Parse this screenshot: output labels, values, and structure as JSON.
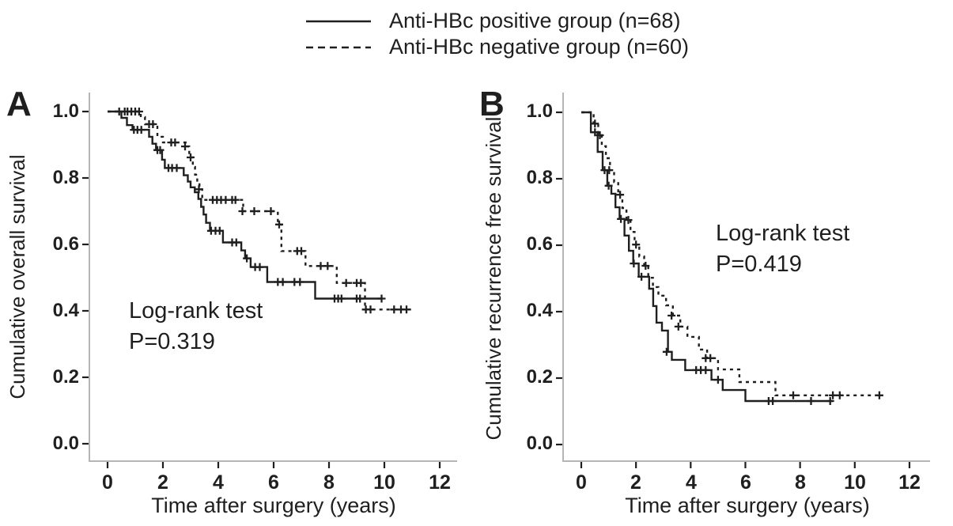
{
  "colors": {
    "ink": "#1f1f1f",
    "axis": "#b5b5b5"
  },
  "legend": {
    "items": [
      {
        "label": "Anti-HBc positive group (n=68)",
        "style": "solid"
      },
      {
        "label": "Anti-HBc negative group (n=60)",
        "style": "dashed"
      }
    ]
  },
  "chart_data": [
    {
      "type": "line",
      "subtype": "kaplan-meier-step",
      "panel": "A",
      "letter": "A",
      "ylabel": "Cumulative overall survival",
      "xlabel": "Time after surgery (years)",
      "annotation": [
        "Log-rank test",
        "P=0.319"
      ],
      "xlim": [
        0,
        12
      ],
      "ylim": [
        0.0,
        1.0
      ],
      "xticks": [
        0,
        2,
        4,
        6,
        8,
        10,
        12
      ],
      "xtick_labels": [
        "0",
        "2",
        "4",
        "6",
        "8",
        "10",
        "12"
      ],
      "ytick_values": [
        1.0,
        0.8,
        0.6,
        0.4,
        0.2,
        0.0
      ],
      "ytick_labels": [
        "1.0",
        "0.8",
        "0.6",
        "0.4",
        "0.2",
        "0.0"
      ],
      "grid": false,
      "series": [
        {
          "name": "Anti-HBc positive group (n=68)",
          "style": "solid",
          "end_t": 9.9,
          "steps": [
            [
              0,
              1.0
            ],
            [
              0.5,
              0.981
            ],
            [
              0.7,
              0.959
            ],
            [
              0.9,
              0.945
            ],
            [
              1.5,
              0.924
            ],
            [
              1.62,
              0.903
            ],
            [
              1.75,
              0.884
            ],
            [
              1.97,
              0.855
            ],
            [
              2.07,
              0.83
            ],
            [
              2.75,
              0.808
            ],
            [
              2.9,
              0.789
            ],
            [
              3.0,
              0.772
            ],
            [
              3.15,
              0.757
            ],
            [
              3.28,
              0.737
            ],
            [
              3.38,
              0.713
            ],
            [
              3.47,
              0.69
            ],
            [
              3.56,
              0.665
            ],
            [
              3.7,
              0.641
            ],
            [
              4.17,
              0.606
            ],
            [
              4.83,
              0.582
            ],
            [
              4.97,
              0.558
            ],
            [
              5.17,
              0.532
            ],
            [
              5.77,
              0.487
            ],
            [
              7.5,
              0.437
            ]
          ],
          "censors": [
            [
              0.42,
              1.0
            ],
            [
              0.95,
              0.945
            ],
            [
              1.08,
              0.945
            ],
            [
              1.22,
              0.945
            ],
            [
              1.8,
              0.884
            ],
            [
              1.9,
              0.884
            ],
            [
              2.2,
              0.83
            ],
            [
              2.33,
              0.83
            ],
            [
              2.5,
              0.83
            ],
            [
              3.74,
              0.641
            ],
            [
              3.9,
              0.641
            ],
            [
              4.05,
              0.641
            ],
            [
              4.5,
              0.606
            ],
            [
              4.65,
              0.606
            ],
            [
              5.03,
              0.558
            ],
            [
              5.33,
              0.532
            ],
            [
              5.5,
              0.532
            ],
            [
              6.15,
              0.487
            ],
            [
              6.33,
              0.487
            ],
            [
              6.75,
              0.487
            ],
            [
              6.95,
              0.487
            ],
            [
              8.2,
              0.437
            ],
            [
              8.33,
              0.437
            ],
            [
              8.45,
              0.437
            ],
            [
              9.0,
              0.437
            ],
            [
              9.12,
              0.437
            ],
            [
              9.9,
              0.437
            ]
          ]
        },
        {
          "name": "Anti-HBc negative group (n=60)",
          "style": "dashed",
          "end_t": 11.0,
          "steps": [
            [
              0,
              1.0
            ],
            [
              1.2,
              0.983
            ],
            [
              1.35,
              0.962
            ],
            [
              1.8,
              0.924
            ],
            [
              2.0,
              0.907
            ],
            [
              2.82,
              0.895
            ],
            [
              2.95,
              0.862
            ],
            [
              3.08,
              0.833
            ],
            [
              3.16,
              0.81
            ],
            [
              3.24,
              0.789
            ],
            [
              3.32,
              0.766
            ],
            [
              3.42,
              0.734
            ],
            [
              4.9,
              0.7
            ],
            [
              6.15,
              0.66
            ],
            [
              6.28,
              0.58
            ],
            [
              7.15,
              0.535
            ],
            [
              8.28,
              0.484
            ],
            [
              9.3,
              0.404
            ]
          ],
          "censors": [
            [
              0.62,
              1.0
            ],
            [
              0.72,
              1.0
            ],
            [
              0.86,
              1.0
            ],
            [
              1.0,
              1.0
            ],
            [
              1.14,
              1.0
            ],
            [
              1.5,
              0.962
            ],
            [
              1.64,
              0.962
            ],
            [
              2.3,
              0.907
            ],
            [
              2.44,
              0.907
            ],
            [
              2.8,
              0.895
            ],
            [
              3.0,
              0.862
            ],
            [
              3.3,
              0.766
            ],
            [
              3.8,
              0.734
            ],
            [
              3.95,
              0.734
            ],
            [
              4.1,
              0.734
            ],
            [
              4.27,
              0.734
            ],
            [
              4.5,
              0.734
            ],
            [
              4.62,
              0.734
            ],
            [
              4.87,
              0.7
            ],
            [
              5.3,
              0.7
            ],
            [
              5.9,
              0.7
            ],
            [
              6.2,
              0.66
            ],
            [
              6.85,
              0.58
            ],
            [
              7.0,
              0.58
            ],
            [
              7.7,
              0.535
            ],
            [
              7.95,
              0.535
            ],
            [
              8.62,
              0.484
            ],
            [
              9.0,
              0.484
            ],
            [
              9.15,
              0.484
            ],
            [
              9.33,
              0.404
            ],
            [
              9.5,
              0.404
            ],
            [
              10.35,
              0.404
            ],
            [
              10.6,
              0.404
            ],
            [
              10.8,
              0.404
            ]
          ]
        }
      ]
    },
    {
      "type": "line",
      "subtype": "kaplan-meier-step",
      "panel": "B",
      "letter": "B",
      "ylabel": "Cumulative recurrence free survival",
      "xlabel": "Time after surgery (years)",
      "annotation": [
        "Log-rank test",
        "P=0.419"
      ],
      "xlim": [
        0,
        12
      ],
      "ylim": [
        0.0,
        1.0
      ],
      "xticks": [
        0,
        2,
        4,
        6,
        8,
        10,
        12
      ],
      "xtick_labels": [
        "0",
        "2",
        "4",
        "6",
        "8",
        "10",
        "12"
      ],
      "ytick_values": [
        1.0,
        0.8,
        0.6,
        0.4,
        0.2,
        0.0
      ],
      "ytick_labels": [
        "1.0",
        "0.8",
        "0.6",
        "0.4",
        "0.2",
        "0.0"
      ],
      "grid": false,
      "series": [
        {
          "name": "Anti-HBc positive group (n=68)",
          "style": "solid",
          "end_t": 9.2,
          "steps": [
            [
              0,
              1.0
            ],
            [
              0.35,
              0.94
            ],
            [
              0.6,
              0.881
            ],
            [
              0.78,
              0.826
            ],
            [
              0.95,
              0.779
            ],
            [
              1.1,
              0.755
            ],
            [
              1.25,
              0.714
            ],
            [
              1.4,
              0.679
            ],
            [
              1.58,
              0.629
            ],
            [
              1.74,
              0.583
            ],
            [
              1.9,
              0.545
            ],
            [
              2.1,
              0.505
            ],
            [
              2.48,
              0.469
            ],
            [
              2.63,
              0.417
            ],
            [
              2.75,
              0.367
            ],
            [
              2.95,
              0.343
            ],
            [
              3.17,
              0.279
            ],
            [
              3.31,
              0.255
            ],
            [
              3.8,
              0.224
            ],
            [
              4.76,
              0.195
            ],
            [
              5.17,
              0.164
            ],
            [
              6.0,
              0.131
            ]
          ],
          "censors": [
            [
              0.5,
              0.94
            ],
            [
              0.85,
              0.826
            ],
            [
              1.0,
              0.779
            ],
            [
              1.45,
              0.679
            ],
            [
              1.92,
              0.545
            ],
            [
              2.2,
              0.505
            ],
            [
              3.12,
              0.279
            ],
            [
              4.2,
              0.224
            ],
            [
              4.37,
              0.224
            ],
            [
              4.55,
              0.224
            ],
            [
              5.0,
              0.195
            ],
            [
              6.85,
              0.131
            ],
            [
              7.0,
              0.131
            ],
            [
              8.4,
              0.131
            ],
            [
              9.1,
              0.131
            ]
          ]
        },
        {
          "name": "Anti-HBc negative group (n=60)",
          "style": "dashed",
          "end_t": 11.0,
          "steps": [
            [
              0,
              1.0
            ],
            [
              0.45,
              0.966
            ],
            [
              0.62,
              0.931
            ],
            [
              0.75,
              0.898
            ],
            [
              0.9,
              0.862
            ],
            [
              1.05,
              0.826
            ],
            [
              1.2,
              0.79
            ],
            [
              1.35,
              0.752
            ],
            [
              1.5,
              0.712
            ],
            [
              1.65,
              0.676
            ],
            [
              1.8,
              0.64
            ],
            [
              1.95,
              0.602
            ],
            [
              2.12,
              0.566
            ],
            [
              2.3,
              0.538
            ],
            [
              2.45,
              0.502
            ],
            [
              2.62,
              0.474
            ],
            [
              2.82,
              0.448
            ],
            [
              3.1,
              0.419
            ],
            [
              3.35,
              0.388
            ],
            [
              3.62,
              0.355
            ],
            [
              3.88,
              0.324
            ],
            [
              4.3,
              0.286
            ],
            [
              4.6,
              0.26
            ],
            [
              5.0,
              0.226
            ],
            [
              5.78,
              0.188
            ],
            [
              7.1,
              0.148
            ]
          ],
          "censors": [
            [
              0.5,
              0.966
            ],
            [
              0.68,
              0.931
            ],
            [
              1.02,
              0.826
            ],
            [
              1.42,
              0.752
            ],
            [
              1.72,
              0.676
            ],
            [
              2.0,
              0.602
            ],
            [
              2.35,
              0.538
            ],
            [
              3.3,
              0.388
            ],
            [
              3.55,
              0.355
            ],
            [
              4.55,
              0.26
            ],
            [
              4.72,
              0.26
            ],
            [
              7.75,
              0.148
            ],
            [
              9.2,
              0.148
            ],
            [
              9.45,
              0.148
            ],
            [
              10.9,
              0.148
            ]
          ]
        }
      ]
    }
  ]
}
